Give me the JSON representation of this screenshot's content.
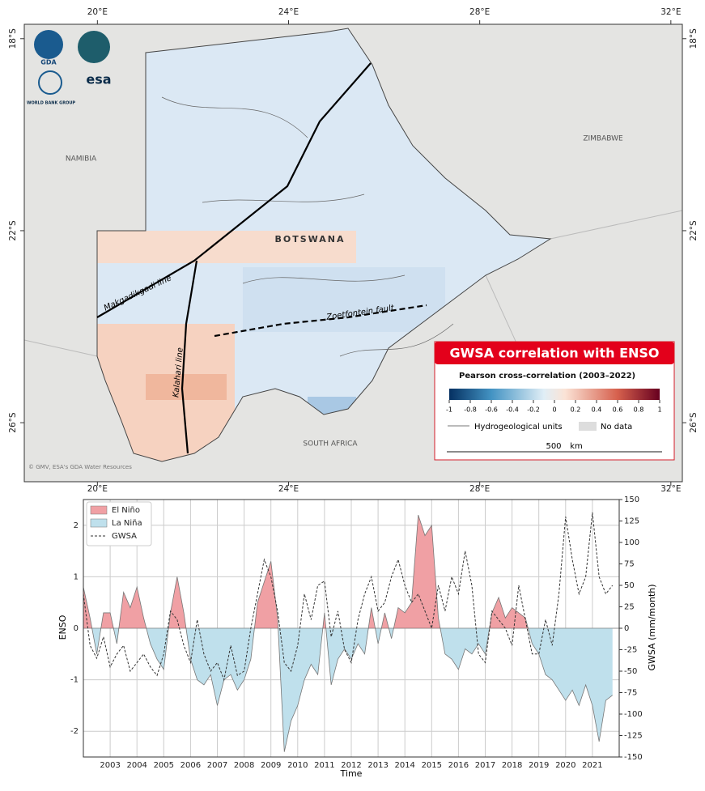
{
  "map": {
    "lon_ticks": [
      {
        "value": 20,
        "label": "20°E"
      },
      {
        "value": 24,
        "label": "24°E"
      },
      {
        "value": 28,
        "label": "28°E"
      },
      {
        "value": 32,
        "label": "32°E"
      }
    ],
    "lat_ticks": [
      {
        "value": -18,
        "label": "18°S"
      },
      {
        "value": -22,
        "label": "22°S"
      },
      {
        "value": -26,
        "label": "26°S"
      }
    ],
    "xlim": [
      18.47,
      32.24
    ],
    "ylim": [
      -27.23,
      -17.7
    ],
    "countries": [
      "NAMIBIA",
      "BOTSWANA",
      "ZIMBABWE",
      "SOUTH AFRICA"
    ],
    "lines": [
      "Makgadikgadi line",
      "Kalahari line",
      "Zoetfontein fault"
    ],
    "logos": [
      "GDA",
      "esa",
      "WORLD BANK GROUP"
    ],
    "credit": "© GMV, ESA's GDA Water Resources",
    "legend": {
      "title": "GWSA correlation with ENSO",
      "subtitle": "Pearson cross-correlation (2003–2022)",
      "ticks": [
        -1,
        -0.8,
        -0.6,
        -0.4,
        -0.2,
        0,
        0.2,
        0.4,
        0.6,
        0.8,
        1
      ],
      "units": "Hydrogeological units",
      "no_data": "No data",
      "scale": "500",
      "scale_unit": "km"
    }
  },
  "chart_data": {
    "type": "area",
    "xlabel": "Time",
    "ylabel": "ENSO",
    "y2label": "GWSA (mm/month)",
    "x": [
      2002,
      2002.25,
      2002.5,
      2002.75,
      2003,
      2003.25,
      2003.5,
      2003.75,
      2004,
      2004.25,
      2004.5,
      2004.75,
      2005,
      2005.25,
      2005.5,
      2005.75,
      2006,
      2006.25,
      2006.5,
      2006.75,
      2007,
      2007.25,
      2007.5,
      2007.75,
      2008,
      2008.25,
      2008.5,
      2008.75,
      2009,
      2009.25,
      2009.5,
      2009.75,
      2010,
      2010.25,
      2010.5,
      2010.75,
      2011,
      2011.25,
      2011.5,
      2011.75,
      2012,
      2012.25,
      2012.5,
      2012.75,
      2013,
      2013.25,
      2013.5,
      2013.75,
      2014,
      2014.25,
      2014.5,
      2014.75,
      2015,
      2015.25,
      2015.5,
      2015.75,
      2016,
      2016.25,
      2016.5,
      2016.75,
      2017,
      2017.25,
      2017.5,
      2017.75,
      2018,
      2018.25,
      2018.5,
      2018.75,
      2019,
      2019.25,
      2019.5,
      2019.75,
      2020,
      2020.25,
      2020.5,
      2020.75,
      2021,
      2021.25,
      2021.5,
      2021.75
    ],
    "series": [
      {
        "fill_names": [
          "El Niño",
          "La Niña"
        ],
        "fill_colors": [
          "#f0a0a4",
          "#bfe0ec"
        ],
        "color": "#777777",
        "axis": "y",
        "values": [
          0.8,
          0.2,
          -0.5,
          0.3,
          0.3,
          -0.3,
          0.7,
          0.4,
          0.8,
          0.2,
          -0.3,
          -0.6,
          -0.8,
          0.3,
          1.0,
          0.3,
          -0.6,
          -1.0,
          -1.1,
          -0.9,
          -1.5,
          -1.0,
          -0.9,
          -1.2,
          -1.0,
          -0.6,
          0.5,
          0.9,
          1.3,
          0.2,
          -2.4,
          -1.8,
          -1.5,
          -1.0,
          -0.7,
          -0.9,
          0.3,
          -1.1,
          -0.6,
          -0.4,
          -0.6,
          -0.3,
          -0.5,
          0.4,
          -0.3,
          0.3,
          -0.2,
          0.4,
          0.3,
          0.5,
          2.2,
          1.8,
          2.0,
          0.2,
          -0.5,
          -0.6,
          -0.8,
          -0.4,
          -0.5,
          -0.3,
          -0.5,
          0.3,
          0.6,
          0.2,
          0.4,
          0.3,
          0.2,
          -0.3,
          -0.5,
          -0.9,
          -1.0,
          -1.2,
          -1.4,
          -1.2,
          -1.5,
          -1.1,
          -1.5,
          -2.2,
          -1.4,
          -1.3
        ]
      },
      {
        "name": "GWSA",
        "color": "#333333",
        "axis": "y2",
        "dashed": true,
        "values": [
          40,
          -20,
          -35,
          -10,
          -45,
          -30,
          -20,
          -50,
          -40,
          -30,
          -45,
          -55,
          -30,
          20,
          10,
          -20,
          -40,
          10,
          -30,
          -50,
          -40,
          -60,
          -20,
          -55,
          -50,
          0,
          40,
          80,
          60,
          20,
          -40,
          -50,
          -20,
          40,
          10,
          50,
          55,
          -10,
          20,
          -25,
          -40,
          10,
          40,
          60,
          20,
          30,
          60,
          80,
          50,
          30,
          40,
          20,
          0,
          50,
          20,
          60,
          40,
          90,
          50,
          -30,
          -40,
          20,
          10,
          0,
          -20,
          50,
          10,
          -30,
          -30,
          10,
          -20,
          40,
          130,
          80,
          40,
          60,
          135,
          60,
          40,
          50
        ]
      }
    ],
    "xlim": [
      2002,
      2022
    ],
    "xticks": [
      2003,
      2004,
      2005,
      2006,
      2007,
      2008,
      2009,
      2010,
      2011,
      2012,
      2013,
      2014,
      2015,
      2016,
      2017,
      2018,
      2019,
      2020,
      2021
    ],
    "ylim": [
      -2.5,
      2.5
    ],
    "yticks": [
      -2,
      -1,
      0,
      1,
      2
    ],
    "y2lim": [
      -150,
      150
    ],
    "y2ticks": [
      -150,
      -125,
      -100,
      -75,
      -50,
      -25,
      0,
      25,
      50,
      75,
      100,
      125,
      150
    ],
    "grid": true,
    "legend": "upper left"
  }
}
